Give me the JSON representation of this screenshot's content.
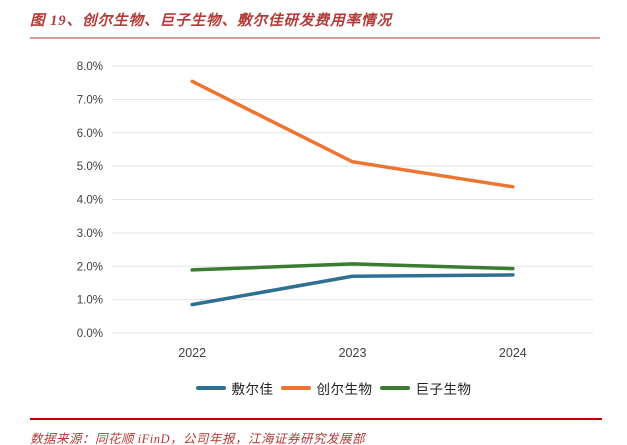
{
  "figure": {
    "title": "图 19、创尔生物、巨子生物、敷尔佳研发费用率情况",
    "source_note": "数据来源：同花顺 iFinD，公司年报，江海证券研究发展部"
  },
  "colors": {
    "title_red": "#B33A36",
    "top_rule_pink": "#DE9999",
    "bottom_rule_red": "#C00000",
    "gridline": "#E3E3E3",
    "tick_label": "#404040"
  },
  "chart_data": {
    "type": "line",
    "categories": [
      "2022",
      "2023",
      "2024"
    ],
    "series": [
      {
        "name": "敷尔佳",
        "color": "#2E6F92",
        "values": [
          0.85,
          1.7,
          1.74
        ]
      },
      {
        "name": "创尔生物",
        "color": "#ED7431",
        "values": [
          7.54,
          5.13,
          4.38
        ]
      },
      {
        "name": "巨子生物",
        "color": "#3A7C32",
        "values": [
          1.89,
          2.07,
          1.93
        ]
      }
    ],
    "ylim": [
      0,
      8
    ],
    "ytick_step": 1,
    "yticks": [
      "0.0%",
      "1.0%",
      "2.0%",
      "3.0%",
      "4.0%",
      "5.0%",
      "6.0%",
      "7.0%",
      "8.0%"
    ],
    "grid": "horizontal",
    "legend_position": "bottom"
  }
}
